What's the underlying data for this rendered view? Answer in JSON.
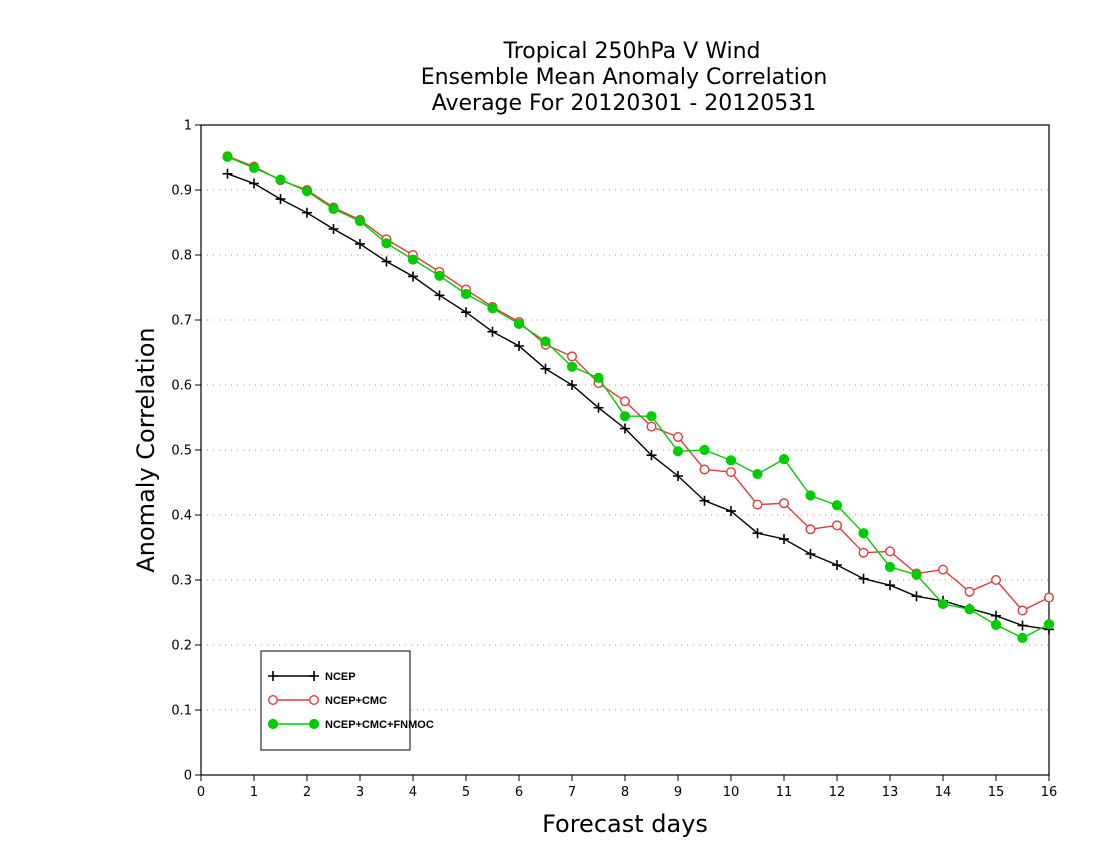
{
  "chart_data": {
    "type": "line",
    "title": [
      "Tropical 250hPa V Wind",
      "Ensemble Mean Anomaly Correlation",
      "Average For 20120301 - 20120531"
    ],
    "xlabel": "Forecast days",
    "ylabel": "Anomaly Correlation",
    "xlim": [
      0,
      16
    ],
    "ylim": [
      0,
      1
    ],
    "xticks": [
      "0",
      "1",
      "2",
      "3",
      "4",
      "5",
      "6",
      "7",
      "8",
      "9",
      "10",
      "11",
      "12",
      "13",
      "14",
      "15",
      "16"
    ],
    "yticks": [
      "0",
      "0.1",
      "0.2",
      "0.3",
      "0.4",
      "0.5",
      "0.6",
      "0.7",
      "0.8",
      "0.9",
      "1"
    ],
    "grid": "horizontal dotted",
    "legend_position": "bottom-left",
    "x": [
      0.5,
      1,
      1.5,
      2,
      2.5,
      3,
      3.5,
      4,
      4.5,
      5,
      5.5,
      6,
      6.5,
      7,
      7.5,
      8,
      8.5,
      9,
      9.5,
      10,
      10.5,
      11,
      11.5,
      12,
      12.5,
      13,
      13.5,
      14,
      14.5,
      15,
      15.5,
      16
    ],
    "series": [
      {
        "name": "NCEP",
        "color": "#000000",
        "marker": "plus",
        "values": [
          0.925,
          0.91,
          0.886,
          0.865,
          0.84,
          0.817,
          0.79,
          0.767,
          0.738,
          0.712,
          0.682,
          0.66,
          0.625,
          0.6,
          0.565,
          0.533,
          0.492,
          0.46,
          0.422,
          0.406,
          0.372,
          0.363,
          0.34,
          0.323,
          0.302,
          0.292,
          0.275,
          0.268,
          0.256,
          0.245,
          0.23,
          0.224
        ]
      },
      {
        "name": "NCEP+CMC",
        "color": "#e03c3c",
        "marker": "open-circle",
        "values": [
          0.952,
          0.936,
          0.915,
          0.9,
          0.873,
          0.854,
          0.824,
          0.8,
          0.774,
          0.747,
          0.72,
          0.697,
          0.662,
          0.644,
          0.603,
          0.575,
          0.536,
          0.52,
          0.47,
          0.466,
          0.416,
          0.418,
          0.378,
          0.384,
          0.342,
          0.344,
          0.31,
          0.316,
          0.282,
          0.3,
          0.253,
          0.273
        ]
      },
      {
        "name": "NCEP+CMC+FNMOC",
        "color": "#00cc00",
        "marker": "filled-circle",
        "values": [
          0.951,
          0.934,
          0.916,
          0.898,
          0.871,
          0.852,
          0.818,
          0.793,
          0.768,
          0.74,
          0.718,
          0.694,
          0.667,
          0.628,
          0.611,
          0.552,
          0.552,
          0.498,
          0.5,
          0.484,
          0.463,
          0.486,
          0.43,
          0.415,
          0.372,
          0.32,
          0.308,
          0.263,
          0.255,
          0.231,
          0.211,
          0.232
        ]
      }
    ]
  }
}
